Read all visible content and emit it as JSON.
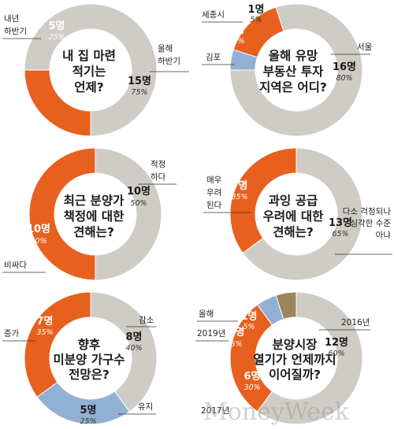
{
  "colors": {
    "orange": "#e8601e",
    "gray": "#cfccc6",
    "blue": "#92b0d3",
    "olive": "#9a8659"
  },
  "watermark": "MoneyWeek",
  "chart_data": [
    {
      "type": "pie",
      "title": "내 집 마련 적기는 언제?",
      "slices": [
        {
          "label": "올해 하반기",
          "count_text": "15명",
          "pct_text": "75%",
          "value": 15,
          "color": "#cfccc6"
        },
        {
          "label": "내년 하반기",
          "count_text": "5명",
          "pct_text": "25%",
          "value": 5,
          "color": "#e8601e"
        }
      ]
    },
    {
      "type": "pie",
      "title": "올해 유망 부동산 투자 지역은 어디?",
      "slices": [
        {
          "label": "서울",
          "count_text": "16명",
          "pct_text": "80%",
          "value": 16,
          "color": "#cfccc6"
        },
        {
          "label": "김포",
          "count_text": "3명",
          "pct_text": "15%",
          "value": 3,
          "color": "#e8601e"
        },
        {
          "label": "세종시",
          "count_text": "1명",
          "pct_text": "5%",
          "value": 1,
          "color": "#92b0d3"
        }
      ]
    },
    {
      "type": "pie",
      "title": "최근 분양가 책정에 대한 견해는?",
      "slices": [
        {
          "label": "적정 하다",
          "count_text": "10명",
          "pct_text": "50%",
          "value": 10,
          "color": "#cfccc6"
        },
        {
          "label": "비싸다",
          "count_text": "10명",
          "pct_text": "50%",
          "value": 10,
          "color": "#e8601e"
        }
      ]
    },
    {
      "type": "pie",
      "title": "과잉 공급 우려에 대한 견해는?",
      "slices": [
        {
          "label": "다소 걱정되나 심각한 수준 아냐",
          "count_text": "13명",
          "pct_text": "65%",
          "value": 13,
          "color": "#cfccc6"
        },
        {
          "label": "매우 우려 된다",
          "count_text": "7명",
          "pct_text": "35%",
          "value": 7,
          "color": "#e8601e"
        }
      ]
    },
    {
      "type": "pie",
      "title": "향후 미분양 가구수 전망은?",
      "slices": [
        {
          "label": "감소",
          "count_text": "8명",
          "pct_text": "40%",
          "value": 8,
          "color": "#cfccc6"
        },
        {
          "label": "유지",
          "count_text": "5명",
          "pct_text": "25%",
          "value": 5,
          "color": "#92b0d3"
        },
        {
          "label": "증가",
          "count_text": "7명",
          "pct_text": "35%",
          "value": 7,
          "color": "#e8601e"
        }
      ]
    },
    {
      "type": "pie",
      "title": "분양시장 열기가 언제까지 이어질까?",
      "slices": [
        {
          "label": "2016년",
          "count_text": "12명",
          "pct_text": "60%",
          "value": 12,
          "color": "#cfccc6"
        },
        {
          "label": "2017년",
          "count_text": "6명",
          "pct_text": "30%",
          "value": 6,
          "color": "#e8601e"
        },
        {
          "label": "2019년",
          "count_text": "1명",
          "pct_text": "5%",
          "value": 1,
          "color": "#92b0d3"
        },
        {
          "label": "올해",
          "count_text": "1명",
          "pct_text": "5%",
          "value": 1,
          "color": "#9a8659"
        }
      ]
    }
  ]
}
